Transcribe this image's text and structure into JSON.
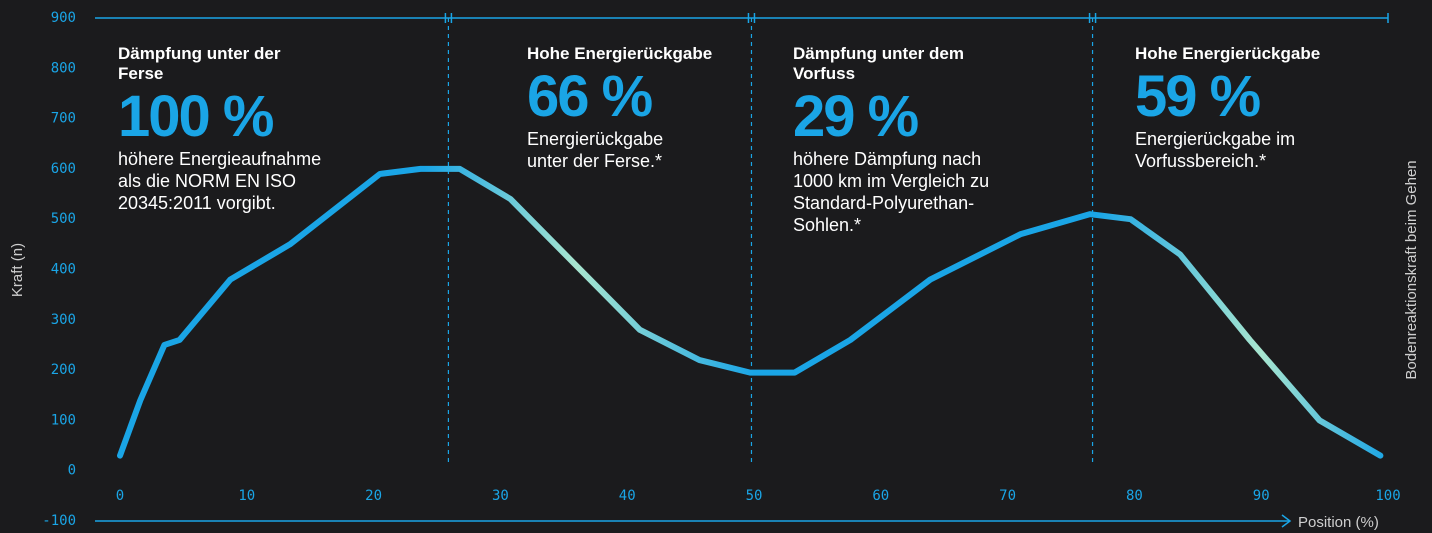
{
  "chart_data": {
    "type": "line",
    "ylabel": "Kraft (n)",
    "xlabel": "Position (%)",
    "right_label": "Bodenreaktionskraft beim Gehen",
    "xlim": [
      0,
      100
    ],
    "xticks": [
      0,
      10,
      20,
      30,
      40,
      50,
      60,
      70,
      80,
      90,
      100
    ],
    "ylim": [
      -100,
      900
    ],
    "yticks": [
      -100,
      0,
      100,
      200,
      300,
      400,
      500,
      600,
      700,
      800,
      900
    ],
    "dividers": [
      25.9,
      49.8,
      76.7
    ],
    "series": [
      {
        "color": "#1aa5e6",
        "x": [
          0,
          1.6,
          3.5,
          4.7,
          8.7,
          13.4,
          20.5,
          23.7,
          26.8,
          30.8,
          35.5,
          41,
          45.7,
          49.7,
          53.2,
          57.6,
          63.9,
          71,
          76.5,
          79.7,
          83.6,
          89.1,
          94.6,
          99.4
        ],
        "values": [
          30,
          140,
          250,
          260,
          380,
          450,
          590,
          600,
          600,
          540,
          420,
          280,
          220,
          195,
          195,
          260,
          380,
          470,
          510,
          500,
          430,
          260,
          100,
          30
        ]
      }
    ],
    "annotations": [
      {
        "heading": [
          "Dämpfung unter der",
          "Ferse"
        ],
        "value": "100 %",
        "text": [
          "höhere Energieaufnahme",
          "als die NORM EN ISO",
          "20345:2011 vorgibt."
        ]
      },
      {
        "heading": [
          "Hohe Energierückgabe"
        ],
        "value": "66 %",
        "text": [
          "Energierückgabe",
          "unter der Ferse.*"
        ]
      },
      {
        "heading": [
          "Dämpfung unter dem",
          "Vorfuss"
        ],
        "value": "29 %",
        "text": [
          "höhere Dämpfung nach",
          "1000 km im Vergleich zu",
          "Standard-Polyurethan-",
          "Sohlen.*"
        ]
      },
      {
        "heading": [
          "Hohe Energierückgabe"
        ],
        "value": "59 %",
        "text": [
          "Energierückgabe im",
          "Vorfussbereich.*"
        ]
      }
    ]
  }
}
